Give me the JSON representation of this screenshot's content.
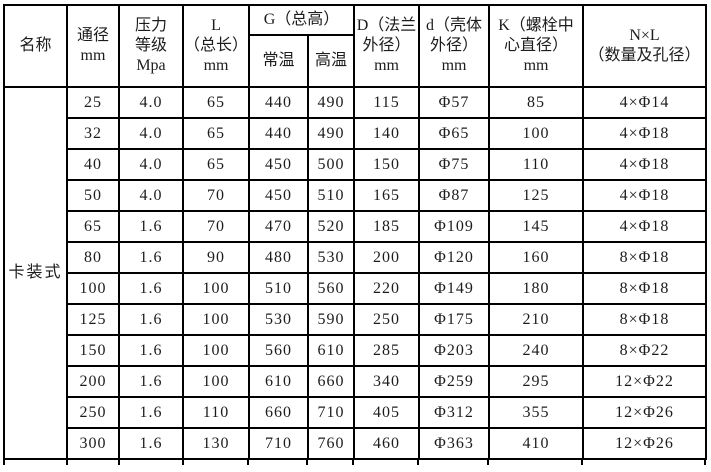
{
  "table": {
    "columns": {
      "name": "名称",
      "dn": [
        "通径",
        "mm"
      ],
      "pressure": [
        "压力",
        "等级",
        "Mpa"
      ],
      "length": [
        "L",
        "（总长）",
        "mm"
      ],
      "height_group": "G（总高）",
      "height_normal": "常温",
      "height_high": "高温",
      "flange_od": [
        "D（法兰",
        "外径）",
        "mm"
      ],
      "shell_od": [
        "d（壳体",
        "外径）",
        "mm"
      ],
      "bolt_circle": [
        "K（螺栓中",
        "心直径）",
        "mm"
      ],
      "holes": [
        "N×L",
        "（数量及孔径）"
      ]
    },
    "group_label": "卡装式",
    "rows": [
      [
        "25",
        "4.0",
        "65",
        "440",
        "490",
        "115",
        "Φ57",
        "85",
        "4×Φ14"
      ],
      [
        "32",
        "4.0",
        "65",
        "440",
        "490",
        "140",
        "Φ65",
        "100",
        "4×Φ18"
      ],
      [
        "40",
        "4.0",
        "65",
        "450",
        "500",
        "150",
        "Φ75",
        "110",
        "4×Φ18"
      ],
      [
        "50",
        "4.0",
        "70",
        "450",
        "510",
        "165",
        "Φ87",
        "125",
        "4×Φ18"
      ],
      [
        "65",
        "1.6",
        "70",
        "470",
        "520",
        "185",
        "Φ109",
        "145",
        "4×Φ18"
      ],
      [
        "80",
        "1.6",
        "90",
        "480",
        "530",
        "200",
        "Φ120",
        "160",
        "8×Φ18"
      ],
      [
        "100",
        "1.6",
        "100",
        "510",
        "560",
        "220",
        "Φ149",
        "180",
        "8×Φ18"
      ],
      [
        "125",
        "1.6",
        "100",
        "530",
        "590",
        "250",
        "Φ175",
        "210",
        "8×Φ18"
      ],
      [
        "150",
        "1.6",
        "100",
        "560",
        "610",
        "285",
        "Φ203",
        "240",
        "8×Φ22"
      ],
      [
        "200",
        "1.6",
        "100",
        "610",
        "660",
        "340",
        "Φ259",
        "295",
        "12×Φ22"
      ],
      [
        "250",
        "1.6",
        "110",
        "660",
        "710",
        "405",
        "Φ312",
        "355",
        "12×Φ26"
      ],
      [
        "300",
        "1.6",
        "130",
        "710",
        "760",
        "460",
        "Φ363",
        "410",
        "12×Φ26"
      ]
    ]
  },
  "colors": {
    "border": "#000000",
    "text": "#1c1c1c",
    "background": "#ffffff"
  }
}
